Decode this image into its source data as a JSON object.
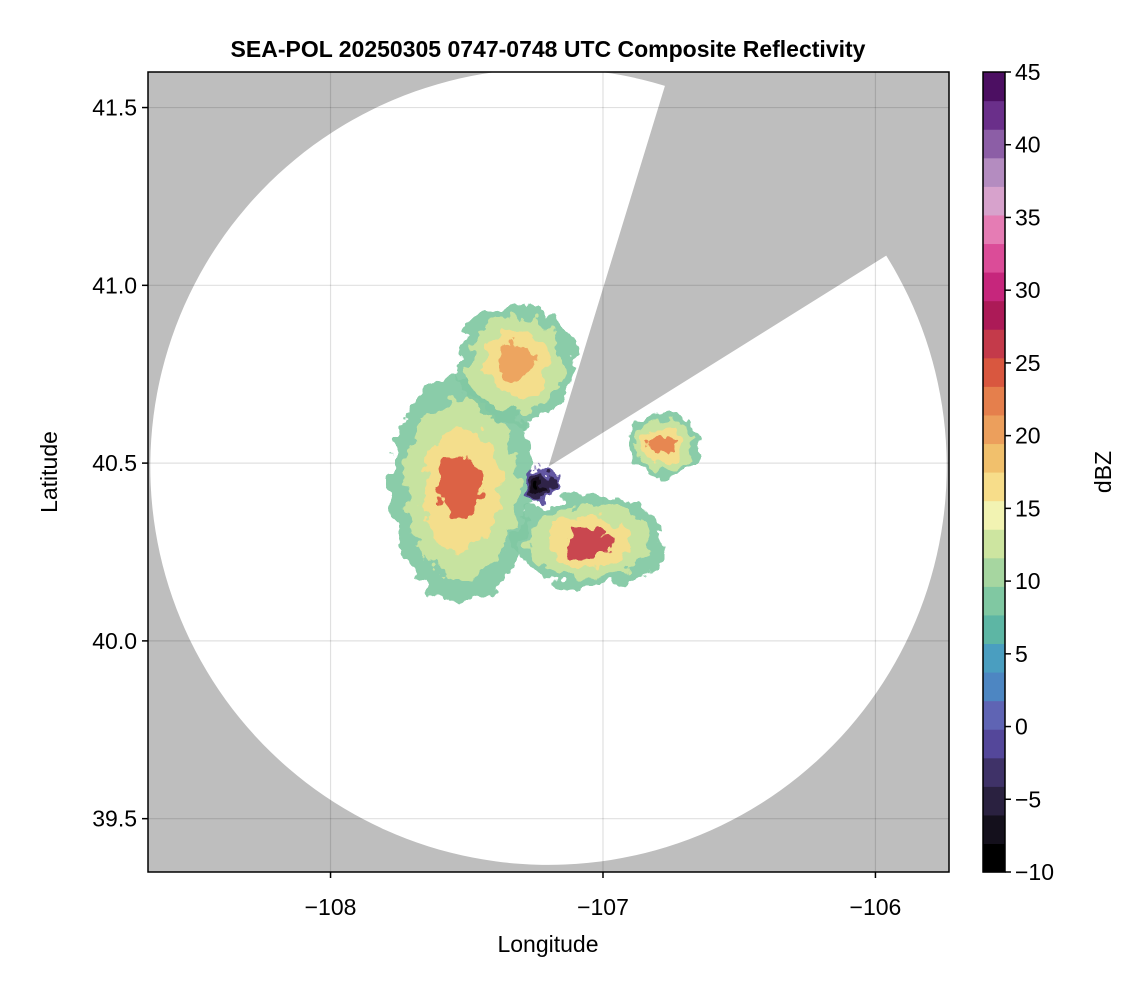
{
  "chart_data": {
    "type": "heatmap",
    "title": "SEA-POL 20250305 0747-0748 UTC Composite Reflectivity",
    "xlabel": "Longitude",
    "ylabel": "Latitude",
    "xlim": [
      -108.67,
      -105.73
    ],
    "ylim": [
      39.35,
      41.6
    ],
    "x_ticks": [
      -108,
      -107,
      -106
    ],
    "x_tick_labels": [
      "−108",
      "−107",
      "−106"
    ],
    "y_ticks": [
      39.5,
      40.0,
      40.5,
      41.0,
      41.5
    ],
    "y_tick_labels": [
      "39.5",
      "40.0",
      "40.5",
      "41.0",
      "41.5"
    ],
    "grid": true,
    "background_color": "#bebebe",
    "coverage_color": "#ffffff",
    "radar_center": [
      -107.2,
      40.49
    ],
    "radar_range_deg_lat": 1.12,
    "blocked_sector_bearings_deg": [
      17,
      58
    ],
    "colorbar": {
      "label": "dBZ",
      "range": [
        -10,
        45
      ],
      "ticks": [
        -10,
        -5,
        0,
        5,
        10,
        15,
        20,
        25,
        30,
        35,
        40,
        45
      ],
      "tick_labels": [
        "−10",
        "−5",
        "0",
        "5",
        "10",
        "15",
        "20",
        "25",
        "30",
        "35",
        "40",
        "45"
      ],
      "colors": [
        "#000000",
        "#14101c",
        "#2a2140",
        "#3f3268",
        "#54479a",
        "#5f64b4",
        "#4d86c2",
        "#4a9ec0",
        "#5db6a4",
        "#80c8a2",
        "#a6d6a0",
        "#cde5a0",
        "#f2f3b2",
        "#f7dd8a",
        "#f1c06c",
        "#ec9f5c",
        "#e57f4c",
        "#d9573f",
        "#c43a4a",
        "#ac1a57",
        "#c6267c",
        "#db4c98",
        "#e57cb4",
        "#d7a2cc",
        "#b48cc0",
        "#8c5ea6",
        "#6a2f8a",
        "#4c0f62"
      ]
    },
    "echo_regions": [
      {
        "name": "west-main",
        "center": [
          -107.52,
          40.43
        ],
        "radii": [
          0.26,
          0.32
        ],
        "peak_dBZ": 25
      },
      {
        "name": "north-ring",
        "center": [
          -107.32,
          40.78
        ],
        "radii": [
          0.22,
          0.17
        ],
        "peak_dBZ": 20
      },
      {
        "name": "south-arm",
        "center": [
          -107.05,
          40.28
        ],
        "radii": [
          0.28,
          0.13
        ],
        "peak_dBZ": 27
      },
      {
        "name": "east-cell",
        "center": [
          -106.78,
          40.55
        ],
        "radii": [
          0.13,
          0.09
        ],
        "peak_dBZ": 22
      },
      {
        "name": "core-near-radar",
        "center": [
          -107.24,
          40.44
        ],
        "radii": [
          0.06,
          0.05
        ],
        "peak_dBZ": -9
      }
    ]
  }
}
